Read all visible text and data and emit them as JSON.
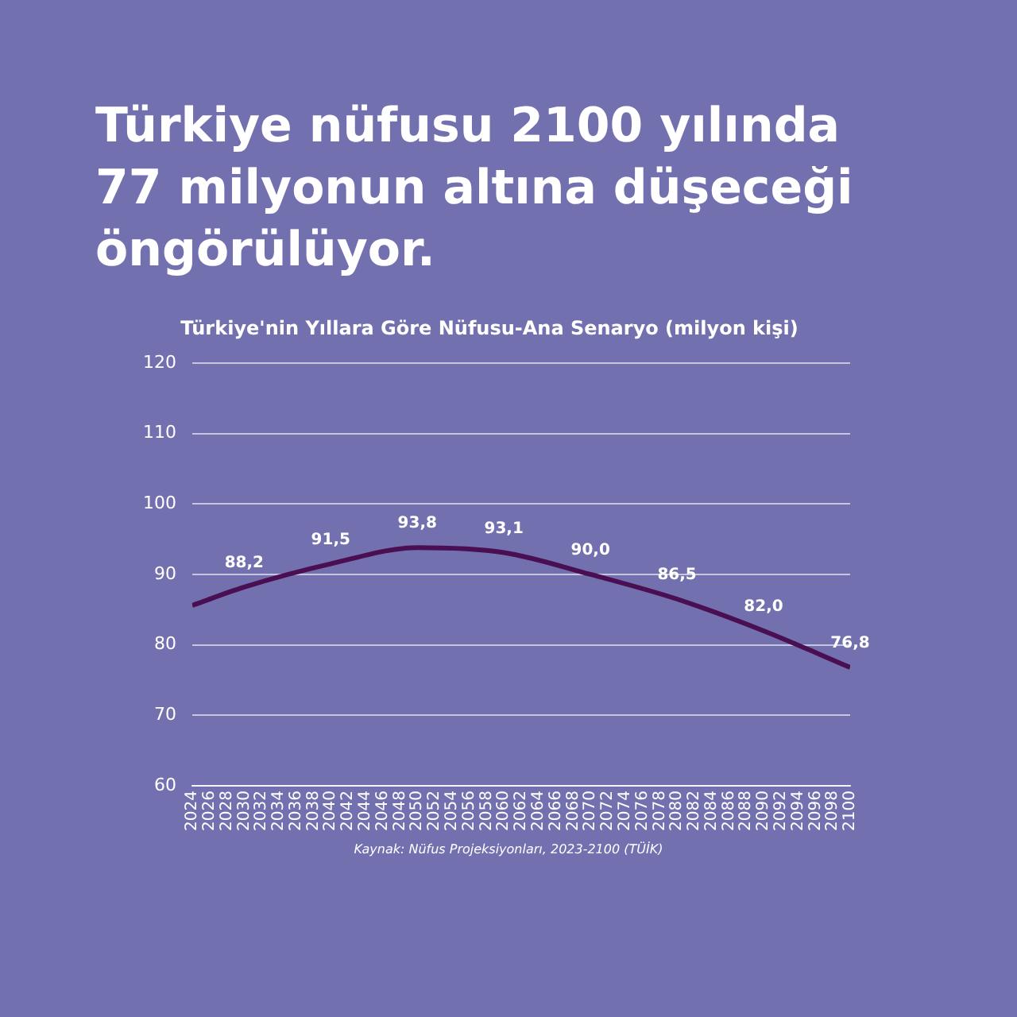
{
  "chart_data": {
    "type": "line",
    "title": "Türkiye nüfusu 2100 yılında 77 milyonun altına düşeceği öngörülüyor.",
    "subtitle": "Türkiye'nin Yıllara Göre Nüfusu-Ana Senaryo (milyon kişi)",
    "x": [
      2024,
      2030,
      2040,
      2050,
      2060,
      2070,
      2080,
      2090,
      2100
    ],
    "series": [
      {
        "color": "#4a0f52",
        "values": [
          85.6,
          88.2,
          91.5,
          93.8,
          93.1,
          90.0,
          86.5,
          82.0,
          76.8
        ],
        "value_labels": [
          null,
          "88,2",
          "91,5",
          "93,8",
          "93,1",
          "90,0",
          "86,5",
          "82,0",
          "76,8"
        ]
      }
    ],
    "xlim": [
      2024,
      2100
    ],
    "xticks": [
      2024,
      2026,
      2028,
      2030,
      2032,
      2034,
      2036,
      2038,
      2040,
      2042,
      2044,
      2046,
      2048,
      2050,
      2052,
      2054,
      2056,
      2058,
      2060,
      2062,
      2064,
      2066,
      2068,
      2070,
      2072,
      2074,
      2076,
      2078,
      2080,
      2082,
      2084,
      2086,
      2088,
      2090,
      2092,
      2094,
      2096,
      2098,
      2100
    ],
    "ylim": [
      60,
      120
    ],
    "yticks": [
      60,
      70,
      80,
      90,
      100,
      110,
      120
    ],
    "grid": "y",
    "marker": "none",
    "line_style": "solid",
    "legend": false,
    "annotations": [
      "Kaynak: Nüfus Projeksiyonları, 2023-2100 (TÜİK)"
    ]
  }
}
